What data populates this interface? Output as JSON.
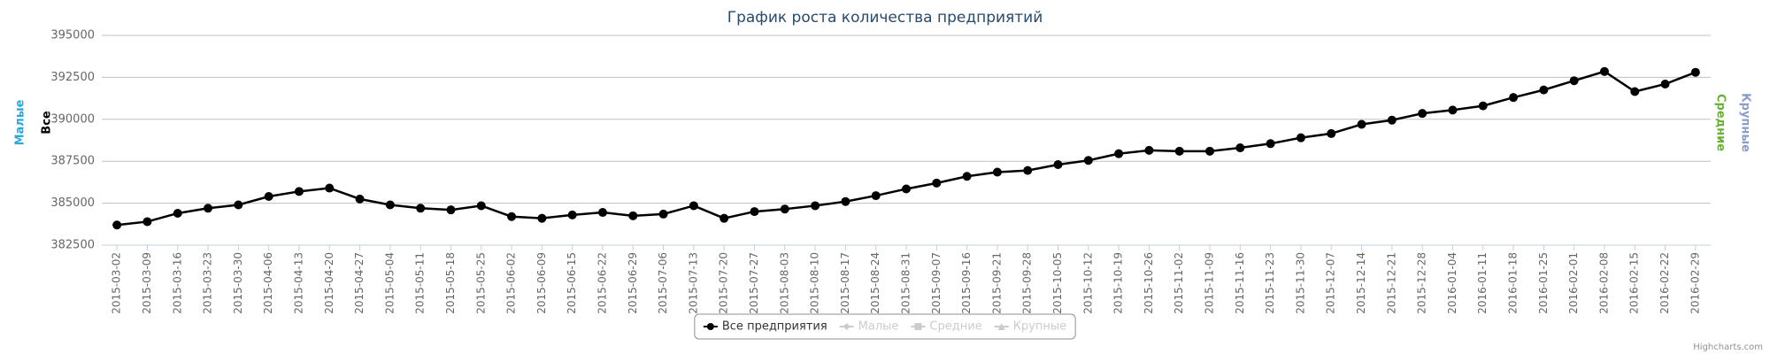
{
  "chart_data": {
    "type": "line",
    "title": "График роста количества предприятий",
    "categories": [
      "2015-03-02",
      "2015-03-09",
      "2015-03-16",
      "2015-03-23",
      "2015-03-30",
      "2015-04-06",
      "2015-04-13",
      "2015-04-20",
      "2015-04-27",
      "2015-05-04",
      "2015-05-11",
      "2015-05-18",
      "2015-05-25",
      "2015-06-02",
      "2015-06-09",
      "2015-06-15",
      "2015-06-22",
      "2015-06-29",
      "2015-07-06",
      "2015-07-13",
      "2015-07-20",
      "2015-07-27",
      "2015-08-03",
      "2015-08-10",
      "2015-08-17",
      "2015-08-24",
      "2015-08-31",
      "2015-09-07",
      "2015-09-16",
      "2015-09-21",
      "2015-09-28",
      "2015-10-05",
      "2015-10-12",
      "2015-10-19",
      "2015-10-26",
      "2015-11-02",
      "2015-11-09",
      "2015-11-16",
      "2015-11-23",
      "2015-11-30",
      "2015-12-07",
      "2015-12-14",
      "2015-12-21",
      "2015-12-28",
      "2016-01-04",
      "2016-01-11",
      "2016-01-18",
      "2016-01-25",
      "2016-02-01",
      "2016-02-08",
      "2016-02-15",
      "2016-02-22",
      "2016-02-29"
    ],
    "series": [
      {
        "name": "Все предприятия",
        "color": "#000000",
        "visible": true,
        "values": [
          383700,
          383900,
          384400,
          384700,
          384900,
          385400,
          385700,
          385900,
          385250,
          384900,
          384700,
          384600,
          384850,
          384200,
          384100,
          384300,
          384450,
          384250,
          384350,
          384850,
          384100,
          384500,
          384650,
          384850,
          385100,
          385450,
          385850,
          386200,
          386600,
          386850,
          386950,
          387300,
          387550,
          387950,
          388150,
          388100,
          388100,
          388300,
          388550,
          388900,
          389150,
          389700,
          389950,
          390350,
          390550,
          390800,
          391300,
          391750,
          392300,
          392850,
          391650,
          392100,
          392800
        ]
      },
      {
        "name": "Малые",
        "color": "#2ba7d9",
        "visible": false
      },
      {
        "name": "Средние",
        "color": "#67b233",
        "visible": false
      },
      {
        "name": "Крупные",
        "color": "#8a9cc9",
        "visible": false
      }
    ],
    "ylim": [
      382500,
      395000
    ],
    "yticks": [
      382500,
      385000,
      387500,
      390000,
      392500,
      395000
    ],
    "grid": true,
    "axis_titles": [
      {
        "text": "Малые",
        "color": "#2ba7d9",
        "side": "left"
      },
      {
        "text": "Все",
        "color": "#000000",
        "side": "left"
      },
      {
        "text": "Средние",
        "color": "#67b233",
        "side": "right"
      },
      {
        "text": "Крупные",
        "color": "#8a9cc9",
        "side": "right"
      }
    ],
    "legend": "bottom",
    "credits": "Highcharts.com"
  }
}
